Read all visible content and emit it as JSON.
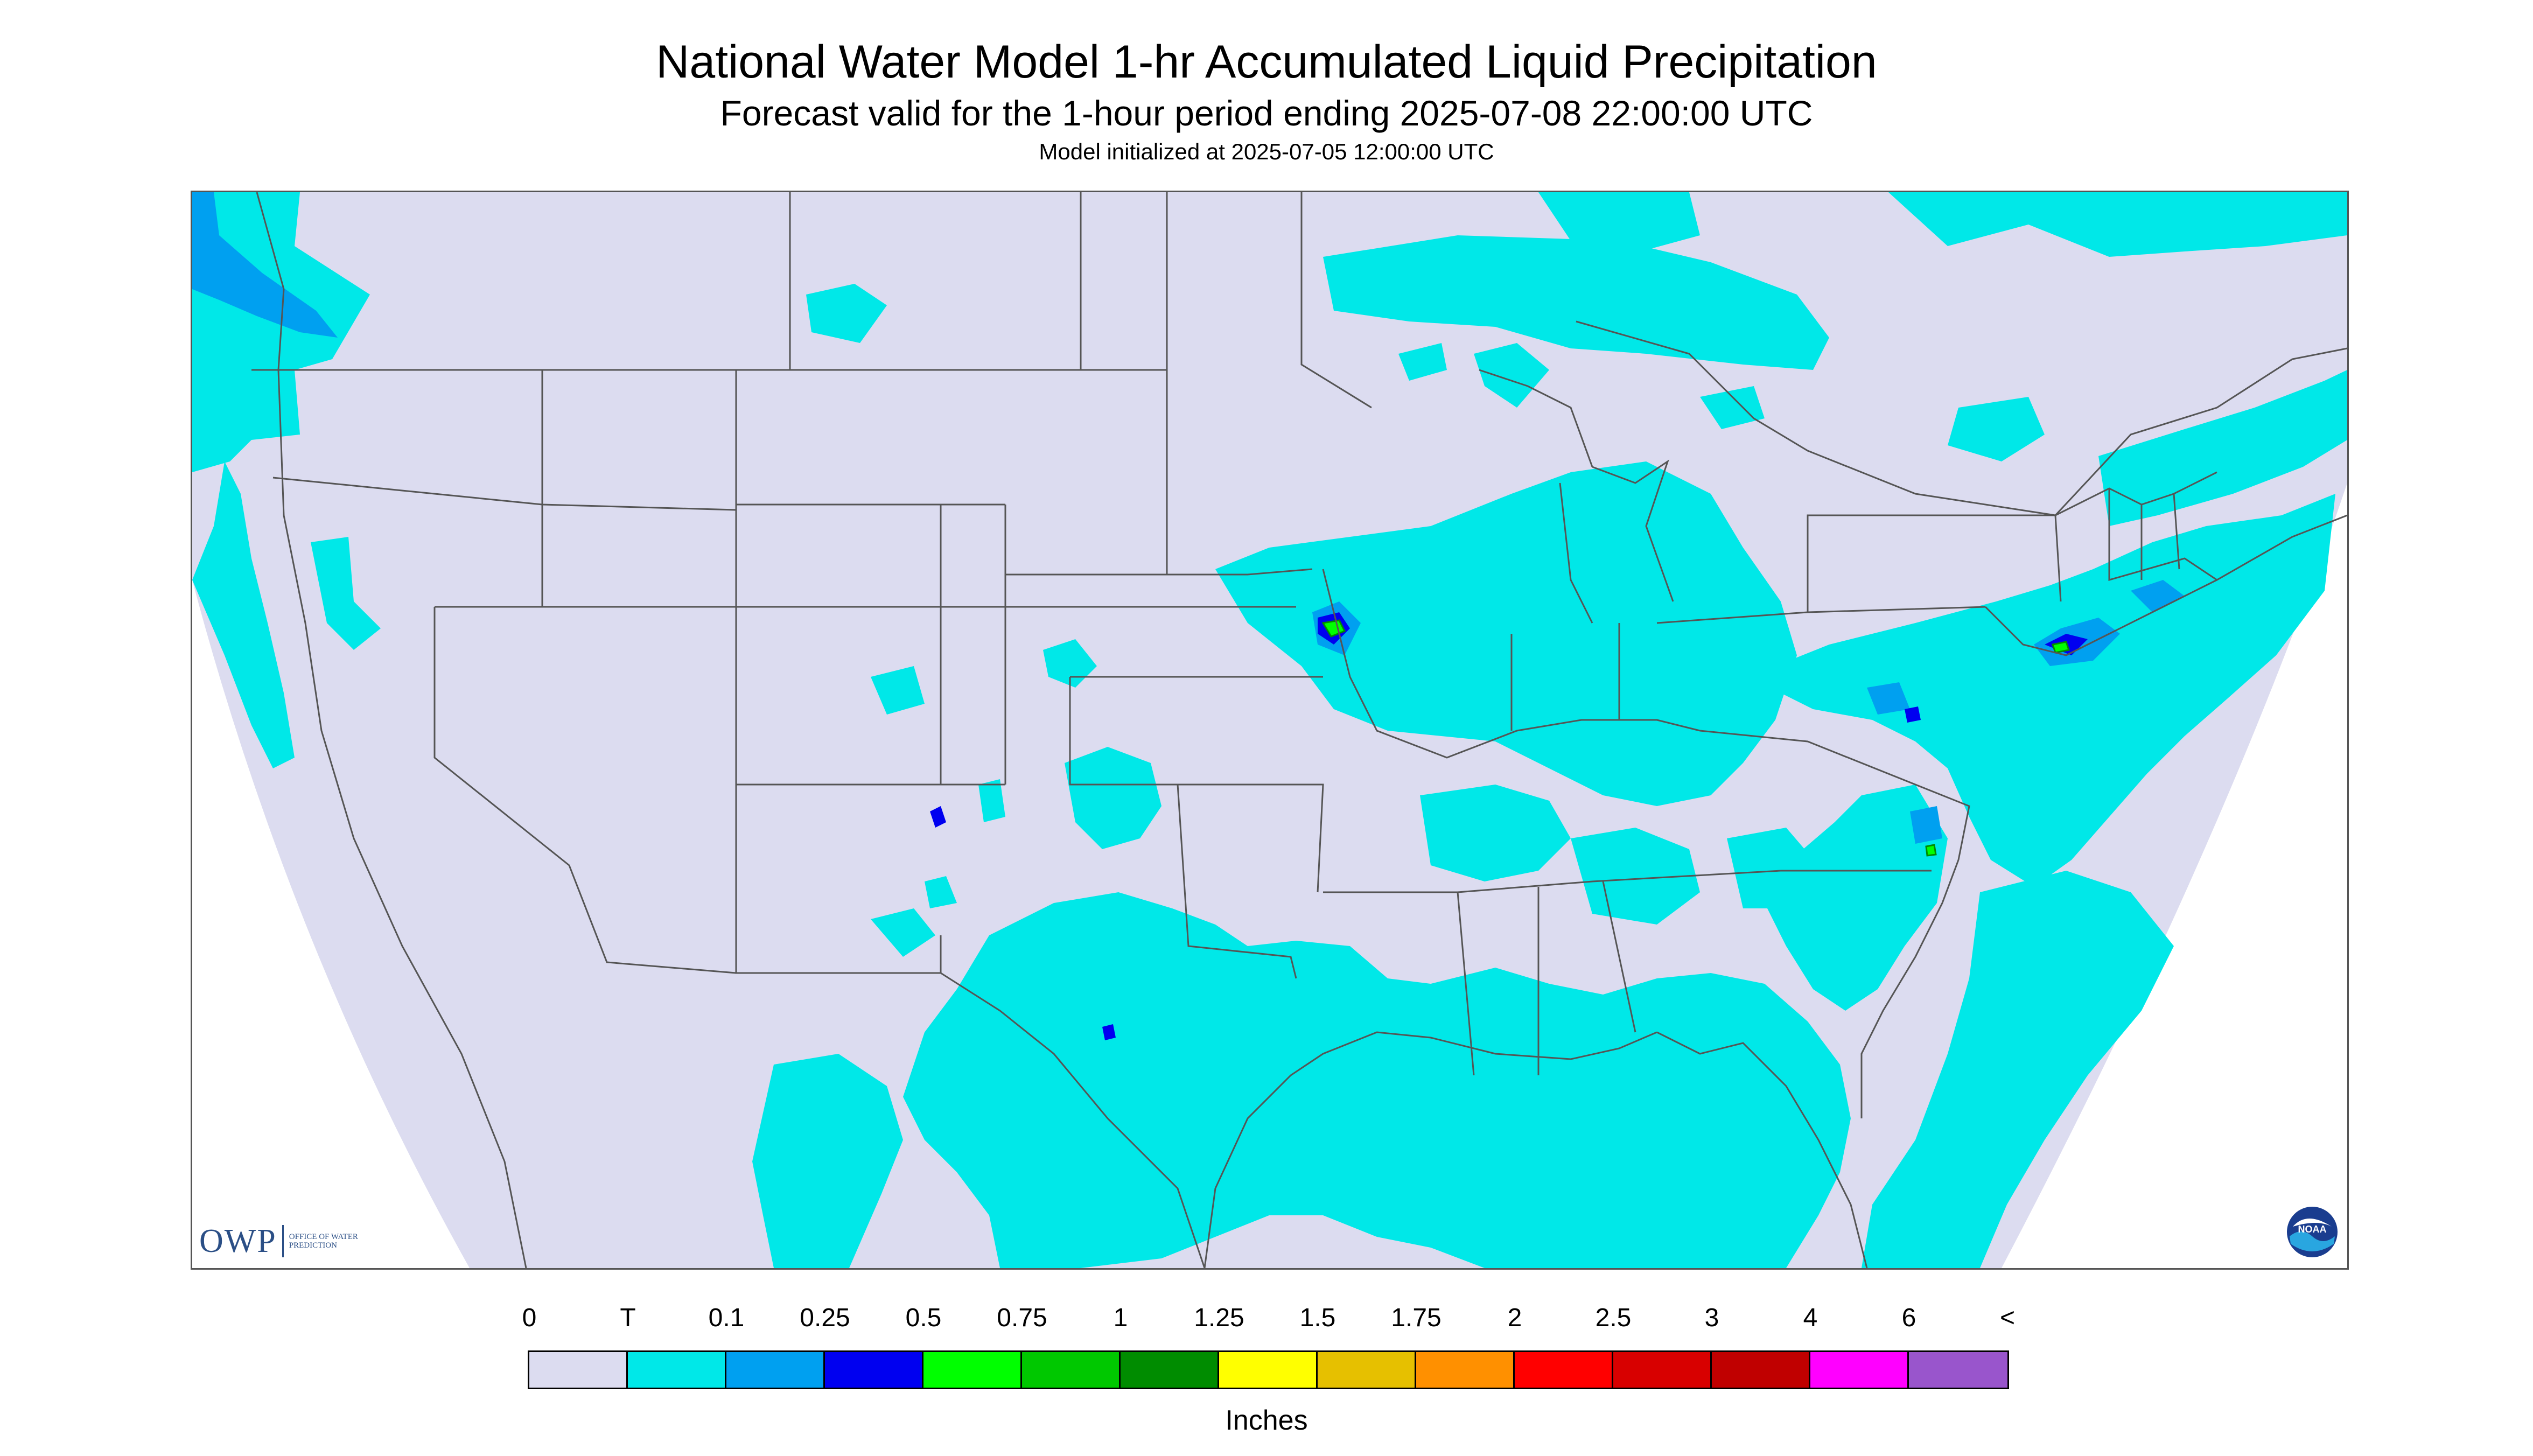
{
  "title": "National Water Model 1-hr Accumulated Liquid Precipitation",
  "subtitle": "Forecast valid for the 1-hour period ending 2025-07-08 22:00:00 UTC",
  "init_line": "Model initialized at 2025-07-05 12:00:00 UTC",
  "logo": {
    "owp_word": "OWP",
    "owp_sub": "OFFICE OF WATER PREDICTION",
    "noaa_text": "NOAA"
  },
  "legend": {
    "labels": [
      "0",
      "T",
      "0.1",
      "0.25",
      "0.5",
      "0.75",
      "1",
      "1.25",
      "1.5",
      "1.75",
      "2",
      "2.5",
      "3",
      "4",
      "6",
      "<"
    ],
    "colors": [
      "#dcdcf0",
      "#00e8e8",
      "#00a0f0",
      "#0000f0",
      "#00ff00",
      "#00c800",
      "#008c00",
      "#ffff00",
      "#e6c000",
      "#ff9000",
      "#ff0000",
      "#d80000",
      "#c00000",
      "#ff00ff",
      "#9955cc"
    ],
    "units": "Inches"
  },
  "colors": {
    "no_precip": "#dcdcf0",
    "trace": "#00e8e8",
    "outside_domain": "#ffffff",
    "boundaries": "#555555"
  }
}
